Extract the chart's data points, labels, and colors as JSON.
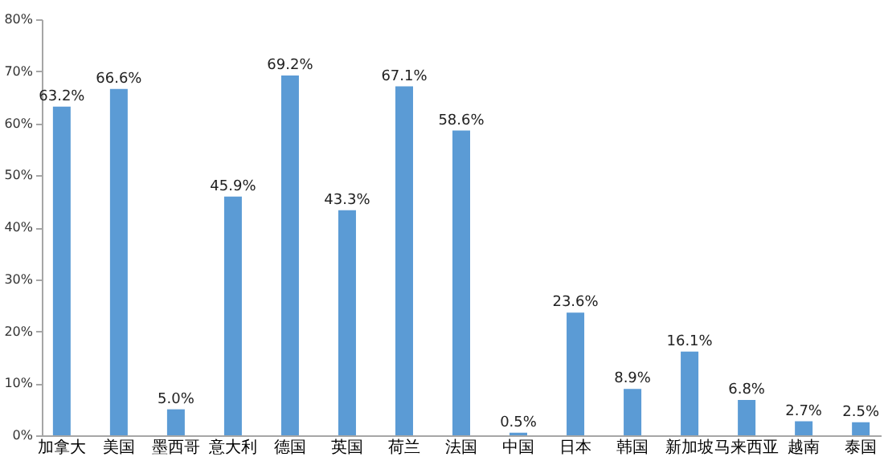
{
  "chart_data": {
    "type": "bar",
    "categories": [
      "加拿大",
      "美国",
      "墨西哥",
      "意大利",
      "德国",
      "英国",
      "荷兰",
      "法国",
      "中国",
      "日本",
      "韩国",
      "新加坡",
      "马来西亚",
      "越南",
      "泰国"
    ],
    "values": [
      63.2,
      66.6,
      5.0,
      45.9,
      69.2,
      43.3,
      67.1,
      58.6,
      0.5,
      23.6,
      8.9,
      16.1,
      6.8,
      2.7,
      2.5
    ],
    "value_labels": [
      "63.2%",
      "66.6%",
      "5.0%",
      "45.9%",
      "69.2%",
      "43.3%",
      "67.1%",
      "58.6%",
      "0.5%",
      "23.6%",
      "8.9%",
      "16.1%",
      "6.8%",
      "2.7%",
      "2.5%"
    ],
    "color": "#5b9bd5",
    "ylim": [
      0,
      80
    ],
    "yticks": [
      {
        "value": 0,
        "label": "0%"
      },
      {
        "value": 10,
        "label": "10%"
      },
      {
        "value": 20,
        "label": "20%"
      },
      {
        "value": 30,
        "label": "30%"
      },
      {
        "value": 40,
        "label": "40%"
      },
      {
        "value": 50,
        "label": "50%"
      },
      {
        "value": 60,
        "label": "60%"
      },
      {
        "value": 70,
        "label": "70%"
      },
      {
        "value": 80,
        "label": "80%"
      }
    ],
    "grid": false
  }
}
